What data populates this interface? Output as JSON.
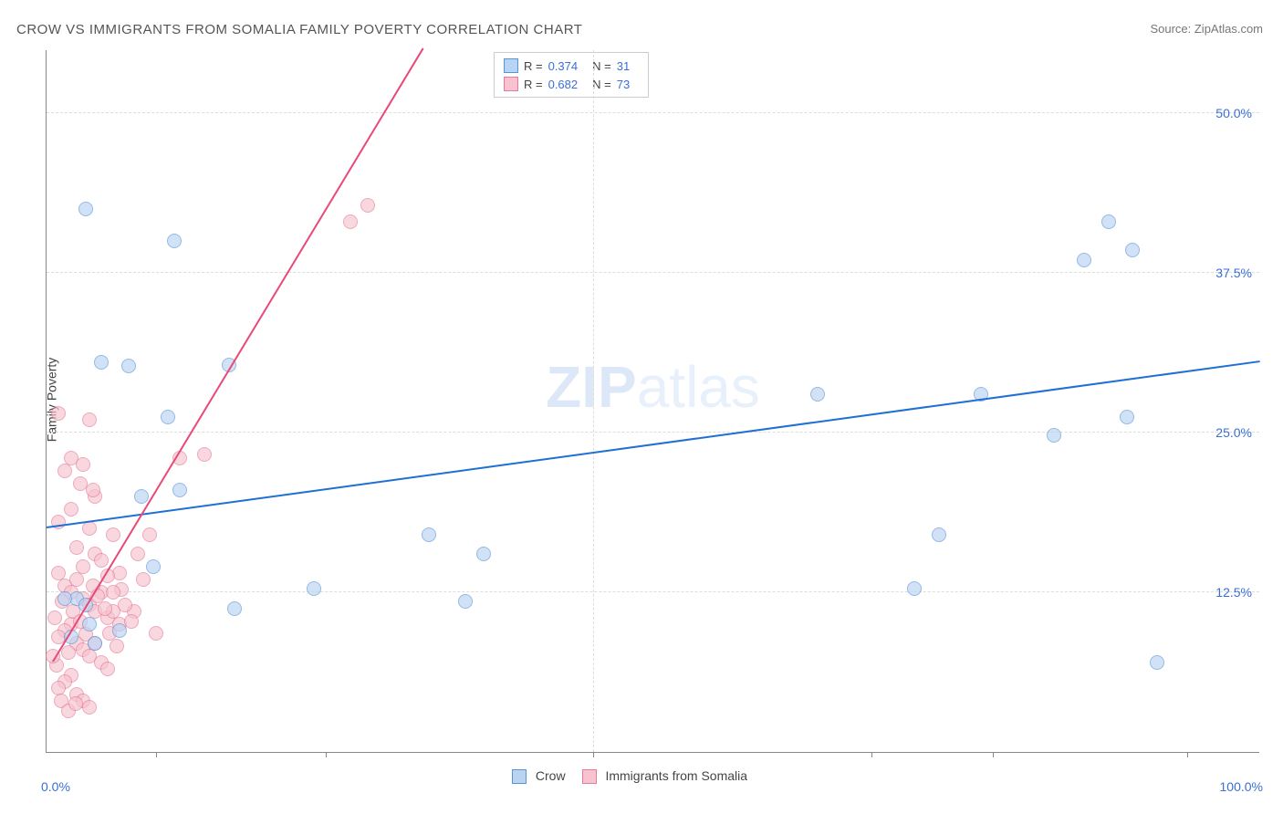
{
  "title": "CROW VS IMMIGRANTS FROM SOMALIA FAMILY POVERTY CORRELATION CHART",
  "source": "Source: ZipAtlas.com",
  "y_axis_label": "Family Poverty",
  "watermark_bold": "ZIP",
  "watermark_light": "atlas",
  "chart": {
    "type": "scatter",
    "xlim": [
      0,
      100
    ],
    "ylim": [
      0,
      55
    ],
    "background_color": "#ffffff",
    "grid_color": "#dddddd",
    "axis_color": "#888888",
    "marker_radius": 8,
    "marker_opacity": 0.65,
    "x_ticks": [
      9,
      23,
      45,
      68,
      78,
      94
    ],
    "x_tick_labels": {
      "left": "0.0%",
      "right": "100.0%"
    },
    "y_ticks": [
      {
        "value": 12.5,
        "label": "12.5%"
      },
      {
        "value": 25.0,
        "label": "25.0%"
      },
      {
        "value": 37.5,
        "label": "37.5%"
      },
      {
        "value": 50.0,
        "label": "50.0%"
      }
    ],
    "series": [
      {
        "name": "Crow",
        "legend_label": "Crow",
        "color_fill": "#b9d4f3",
        "color_stroke": "#5a94d6",
        "trend_color": "#1f6fd4",
        "trend": {
          "x1": 0,
          "y1": 17.5,
          "x2": 100,
          "y2": 30.5
        },
        "R_label": "R =",
        "R_value": "0.374",
        "N_label": "N =",
        "N_value": "31",
        "points": [
          [
            3.2,
            42.5
          ],
          [
            10.5,
            40.0
          ],
          [
            4.5,
            30.5
          ],
          [
            6.8,
            30.2
          ],
          [
            15.0,
            30.3
          ],
          [
            10.0,
            26.2
          ],
          [
            7.8,
            20.0
          ],
          [
            11.0,
            20.5
          ],
          [
            2.5,
            12.0
          ],
          [
            3.2,
            11.5
          ],
          [
            8.8,
            14.5
          ],
          [
            6.0,
            9.5
          ],
          [
            3.5,
            10.0
          ],
          [
            15.5,
            11.2
          ],
          [
            22.0,
            12.8
          ],
          [
            31.5,
            17.0
          ],
          [
            36.0,
            15.5
          ],
          [
            63.5,
            28.0
          ],
          [
            73.5,
            17.0
          ],
          [
            77.0,
            28.0
          ],
          [
            83.0,
            24.8
          ],
          [
            85.5,
            38.5
          ],
          [
            89.5,
            39.3
          ],
          [
            87.5,
            41.5
          ],
          [
            89.0,
            26.2
          ],
          [
            91.5,
            7.0
          ],
          [
            1.5,
            12.0
          ],
          [
            2.0,
            9.0
          ],
          [
            4.0,
            8.5
          ],
          [
            34.5,
            11.8
          ],
          [
            71.5,
            12.8
          ]
        ]
      },
      {
        "name": "Immigrants from Somalia",
        "legend_label": "Immigrants from Somalia",
        "color_fill": "#f6c3cf",
        "color_stroke": "#e77a9a",
        "trend_color": "#e84a77",
        "trend": {
          "x1": 0.5,
          "y1": 7.0,
          "x2": 31,
          "y2": 55
        },
        "R_label": "R =",
        "R_value": "0.682",
        "N_label": "N =",
        "N_value": "73",
        "points": [
          [
            1.0,
            26.5
          ],
          [
            2.0,
            23.0
          ],
          [
            1.5,
            22.0
          ],
          [
            3.5,
            26.0
          ],
          [
            3.0,
            22.5
          ],
          [
            4.0,
            20.0
          ],
          [
            2.0,
            19.0
          ],
          [
            1.0,
            18.0
          ],
          [
            3.5,
            17.5
          ],
          [
            2.5,
            16.0
          ],
          [
            4.0,
            15.5
          ],
          [
            5.5,
            17.0
          ],
          [
            6.0,
            14.0
          ],
          [
            7.5,
            15.5
          ],
          [
            8.5,
            17.0
          ],
          [
            11.0,
            23.0
          ],
          [
            13.0,
            23.3
          ],
          [
            26.5,
            42.8
          ],
          [
            25.0,
            41.5
          ],
          [
            1.0,
            14.0
          ],
          [
            1.5,
            13.0
          ],
          [
            2.0,
            12.5
          ],
          [
            2.5,
            13.5
          ],
          [
            3.0,
            12.0
          ],
          [
            3.5,
            11.5
          ],
          [
            4.0,
            11.0
          ],
          [
            4.5,
            12.5
          ],
          [
            5.0,
            10.5
          ],
          [
            5.5,
            11.0
          ],
          [
            6.0,
            10.0
          ],
          [
            2.0,
            10.0
          ],
          [
            1.5,
            9.5
          ],
          [
            1.0,
            9.0
          ],
          [
            2.5,
            8.5
          ],
          [
            3.0,
            8.0
          ],
          [
            3.5,
            7.5
          ],
          [
            4.0,
            8.5
          ],
          [
            4.5,
            7.0
          ],
          [
            5.0,
            6.5
          ],
          [
            2.0,
            6.0
          ],
          [
            1.5,
            5.5
          ],
          [
            1.0,
            5.0
          ],
          [
            2.5,
            4.5
          ],
          [
            3.0,
            4.0
          ],
          [
            3.5,
            3.5
          ],
          [
            1.2,
            4.0
          ],
          [
            0.8,
            6.8
          ],
          [
            1.8,
            7.8
          ],
          [
            2.2,
            11.0
          ],
          [
            2.8,
            10.2
          ],
          [
            3.2,
            9.2
          ],
          [
            3.8,
            13.0
          ],
          [
            4.2,
            12.2
          ],
          [
            4.8,
            11.2
          ],
          [
            5.2,
            9.3
          ],
          [
            5.8,
            8.3
          ],
          [
            6.2,
            12.7
          ],
          [
            0.5,
            7.5
          ],
          [
            0.7,
            10.5
          ],
          [
            1.3,
            11.8
          ],
          [
            9.0,
            9.3
          ],
          [
            7.2,
            11.0
          ],
          [
            1.8,
            3.2
          ],
          [
            2.4,
            3.8
          ],
          [
            3.0,
            14.5
          ],
          [
            4.5,
            15.0
          ],
          [
            5.0,
            13.8
          ],
          [
            5.5,
            12.5
          ],
          [
            6.5,
            11.5
          ],
          [
            7.0,
            10.2
          ],
          [
            8.0,
            13.5
          ],
          [
            3.8,
            20.5
          ],
          [
            2.8,
            21.0
          ]
        ]
      }
    ]
  }
}
